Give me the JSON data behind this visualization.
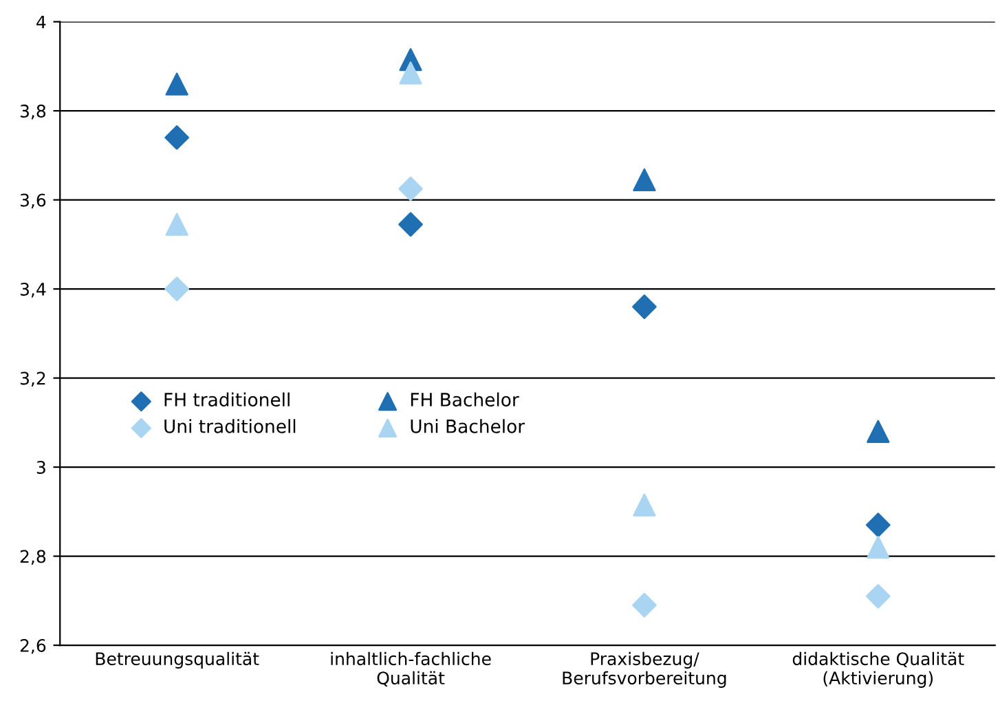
{
  "chart_data": {
    "type": "scatter",
    "categories": [
      "Betreuungsqualität",
      "inhaltlich-fachliche\nQualität",
      "Praxisbezug/\nBerufsvorbereitung",
      "didaktische Qualität\n(Aktivierung)"
    ],
    "series": [
      {
        "name": "FH traditionell",
        "color": "#1f6fb2",
        "marker": "diamond",
        "values": [
          3.74,
          3.545,
          3.36,
          2.87
        ]
      },
      {
        "name": "Uni traditionell",
        "color": "#a9d5f2",
        "marker": "diamond",
        "values": [
          3.4,
          3.625,
          2.69,
          2.71
        ]
      },
      {
        "name": "FH Bachelor",
        "color": "#1f6fb2",
        "marker": "triangle",
        "values": [
          3.86,
          3.915,
          3.645,
          3.08
        ]
      },
      {
        "name": "Uni Bachelor",
        "color": "#a9d5f2",
        "marker": "triangle",
        "values": [
          3.545,
          3.885,
          2.915,
          2.82
        ]
      }
    ],
    "ylim": [
      2.6,
      4
    ],
    "yticks": [
      {
        "value": 2.6,
        "label": "2,6"
      },
      {
        "value": 2.8,
        "label": "2,8"
      },
      {
        "value": 3,
        "label": "3"
      },
      {
        "value": 3.2,
        "label": "3,2"
      },
      {
        "value": 3.4,
        "label": "3,4"
      },
      {
        "value": 3.6,
        "label": "3,6"
      },
      {
        "value": 3.8,
        "label": "3,8"
      },
      {
        "value": 4,
        "label": "4"
      }
    ],
    "grid": "y",
    "legend": "left"
  }
}
